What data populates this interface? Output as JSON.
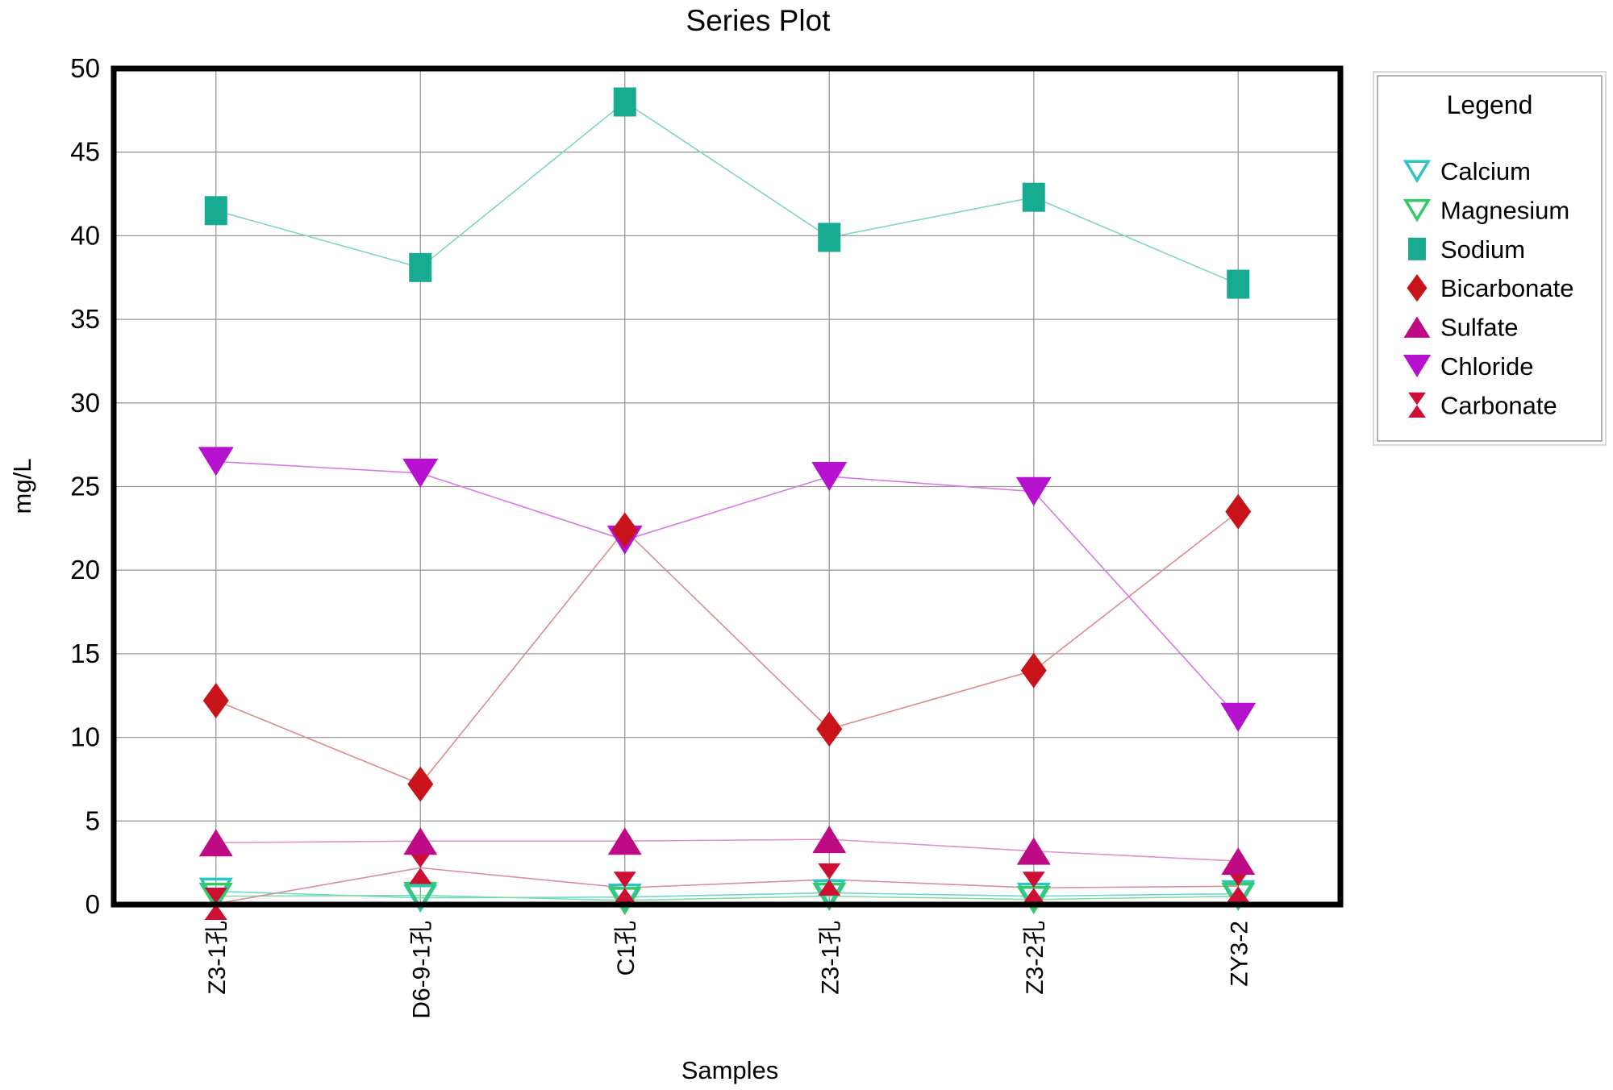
{
  "page": {
    "background": "#ffffff"
  },
  "chart_data": {
    "type": "line",
    "title": "Series Plot",
    "xlabel": "Samples",
    "ylabel": "mg/L",
    "ylim": [
      0,
      50
    ],
    "yticks": [
      0,
      5,
      10,
      15,
      20,
      25,
      30,
      35,
      40,
      45,
      50
    ],
    "grid": true,
    "legend_position": "right",
    "legend_title": "Legend",
    "categories": [
      "Z3-1孔",
      "D6-9-1孔",
      "C1孔",
      "Z3-1孔",
      "Z3-2孔",
      "ZY3-2"
    ],
    "series": [
      {
        "name": "Calcium",
        "marker": "triangle-down-open",
        "color": "#2fc4c4",
        "line_color": "#6fd6d6",
        "values": [
          0.8,
          0.4,
          0.45,
          0.7,
          0.5,
          0.65
        ]
      },
      {
        "name": "Magnesium",
        "marker": "triangle-down-open",
        "color": "#33cb66",
        "line_color": "#84dba0",
        "values": [
          0.5,
          0.55,
          0.25,
          0.5,
          0.3,
          0.5
        ]
      },
      {
        "name": "Sodium",
        "marker": "square",
        "color": "#17ab92",
        "line_color": "#7cd6c3",
        "values": [
          41.5,
          38.1,
          48.0,
          39.9,
          42.3,
          37.1
        ]
      },
      {
        "name": "Bicarbonate",
        "marker": "diamond",
        "color": "#c9131a",
        "line_color": "#dd8c8c",
        "values": [
          12.2,
          7.2,
          22.4,
          10.5,
          14.0,
          23.5
        ]
      },
      {
        "name": "Sulfate",
        "marker": "triangle-up",
        "color": "#bf0a85",
        "line_color": "#e093c4",
        "values": [
          3.7,
          3.8,
          3.8,
          3.9,
          3.2,
          2.6
        ]
      },
      {
        "name": "Chloride",
        "marker": "triangle-down",
        "color": "#b511cf",
        "line_color": "#d678e6",
        "values": [
          26.5,
          25.8,
          21.8,
          25.6,
          24.7,
          11.2
        ]
      },
      {
        "name": "Carbonate",
        "marker": "hourglass",
        "color": "#cc0f33",
        "line_color": "#de8d9b",
        "values": [
          0.05,
          2.2,
          1.0,
          1.5,
          1.0,
          1.1
        ]
      }
    ]
  }
}
